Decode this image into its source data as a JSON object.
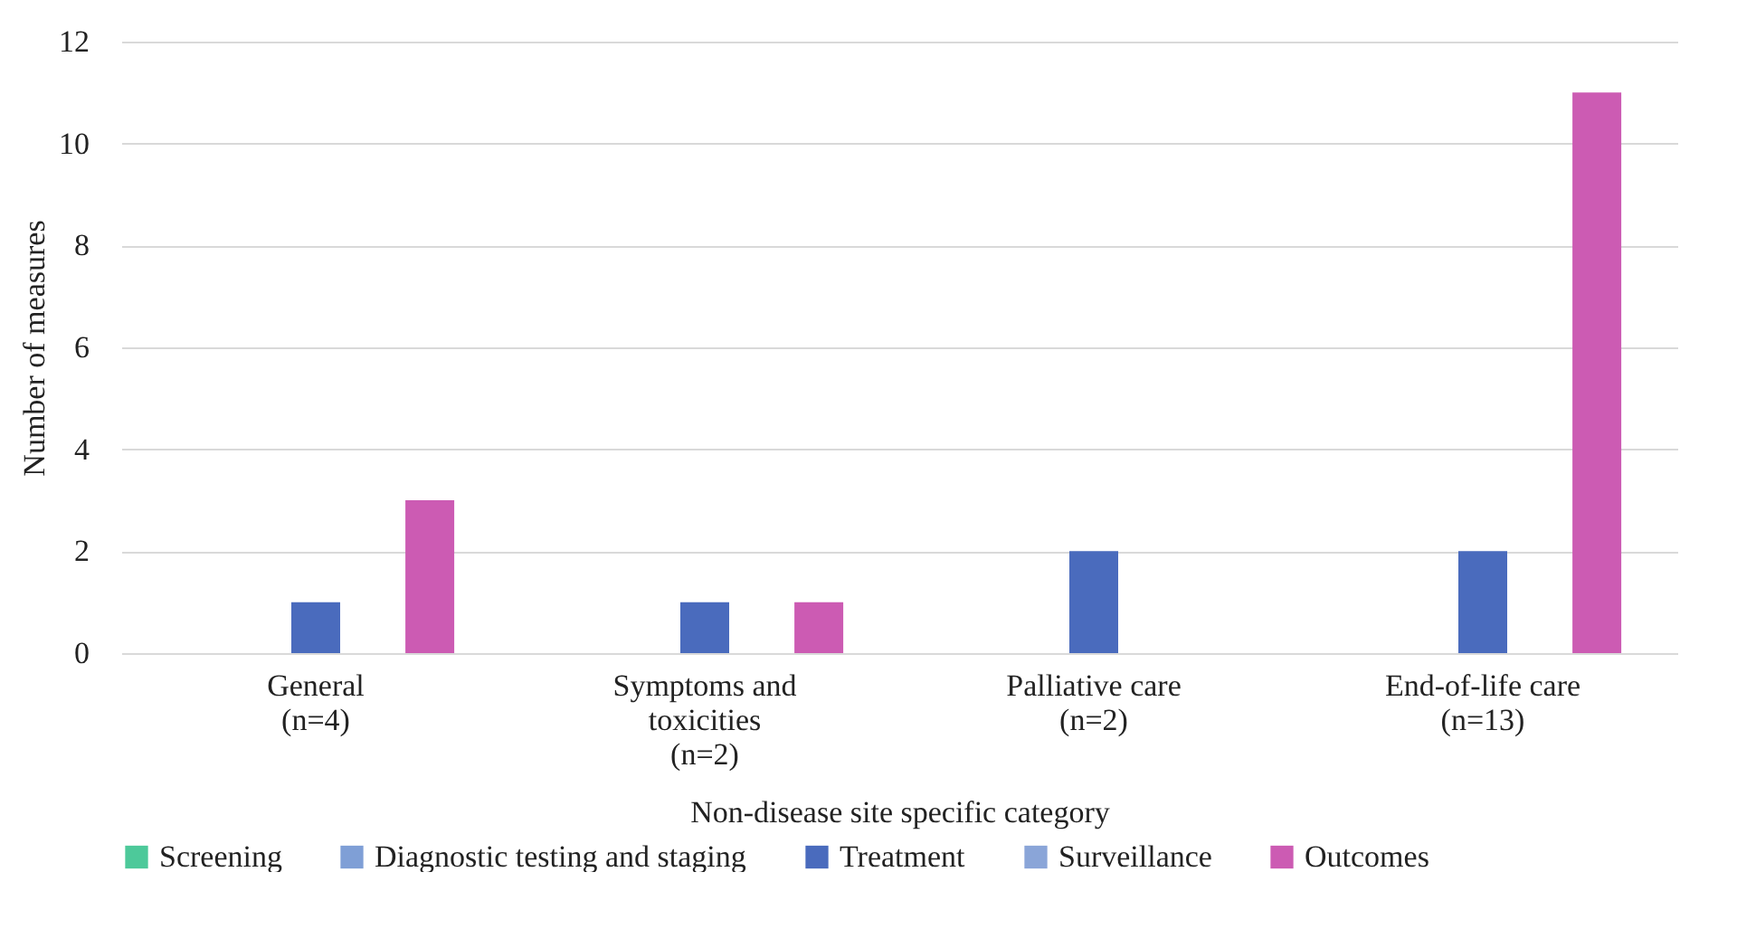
{
  "chart_data": {
    "type": "bar",
    "xlabel": "Non-disease site specific category",
    "ylabel": "Number of measures",
    "categories": [
      "General\n(n=4)",
      "Symptoms and\ntoxicities\n(n=2)",
      "Palliative care\n(n=2)",
      "End-of-life care\n(n=13)"
    ],
    "series": [
      {
        "name": "Screening",
        "color": "#4dc99a",
        "values": [
          0,
          0,
          0,
          0
        ]
      },
      {
        "name": "Diagnostic testing and staging",
        "color": "#7f9fd6",
        "values": [
          0,
          0,
          0,
          0
        ]
      },
      {
        "name": "Treatment",
        "color": "#4a6bbd",
        "values": [
          1,
          1,
          2,
          2
        ]
      },
      {
        "name": "Surveillance",
        "color": "#8aa5d8",
        "values": [
          0,
          0,
          0,
          0
        ]
      },
      {
        "name": "Outcomes",
        "color": "#cc5bb3",
        "values": [
          3,
          1,
          0,
          11
        ]
      }
    ],
    "ylim": [
      0,
      12
    ],
    "yticks": [
      0,
      2,
      4,
      6,
      8,
      10,
      12
    ],
    "grid": "y",
    "legend": "bottom"
  }
}
